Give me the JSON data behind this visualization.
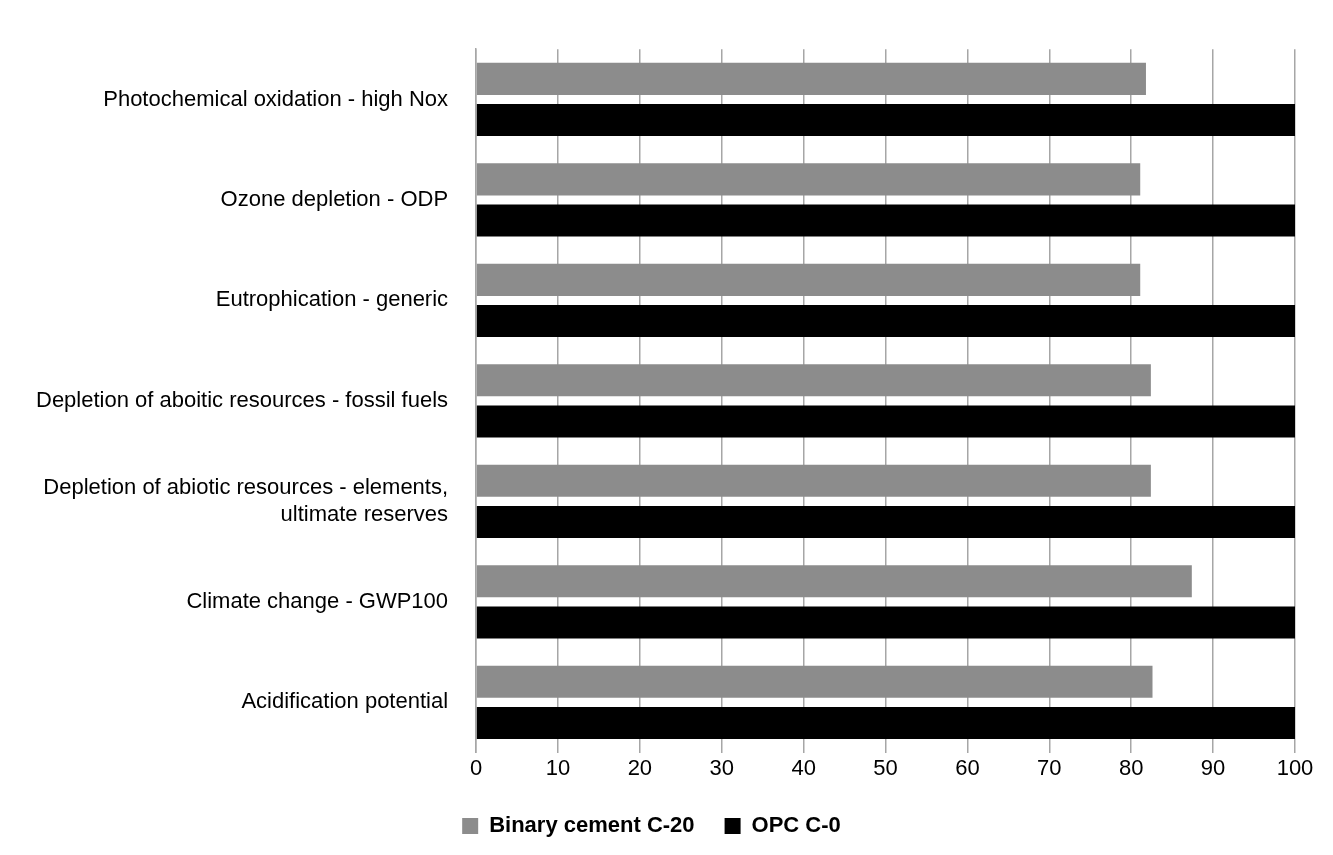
{
  "chart_data": {
    "type": "bar",
    "orientation": "horizontal",
    "categories": [
      "Photochemical oxidation - high Nox",
      "Ozone depletion - ODP",
      "Eutrophication - generic",
      "Depletion of aboitic resources - fossil fuels",
      "Depletion of abiotic resources - elements, ultimate reserves",
      "Climate change - GWP100",
      "Acidification potential"
    ],
    "series": [
      {
        "name": "Binary cement C-20",
        "color": "#8c8c8c",
        "values": [
          81.8,
          81.1,
          81.1,
          82.4,
          82.4,
          87.4,
          82.6
        ]
      },
      {
        "name": "OPC C-0",
        "color": "#000000",
        "values": [
          100,
          100,
          100,
          100,
          100,
          100,
          100
        ]
      }
    ],
    "xlim": [
      0,
      100
    ],
    "xticks": [
      0,
      10,
      20,
      30,
      40,
      50,
      60,
      70,
      80,
      90,
      100
    ],
    "grid": "x",
    "legend": "bottom"
  }
}
